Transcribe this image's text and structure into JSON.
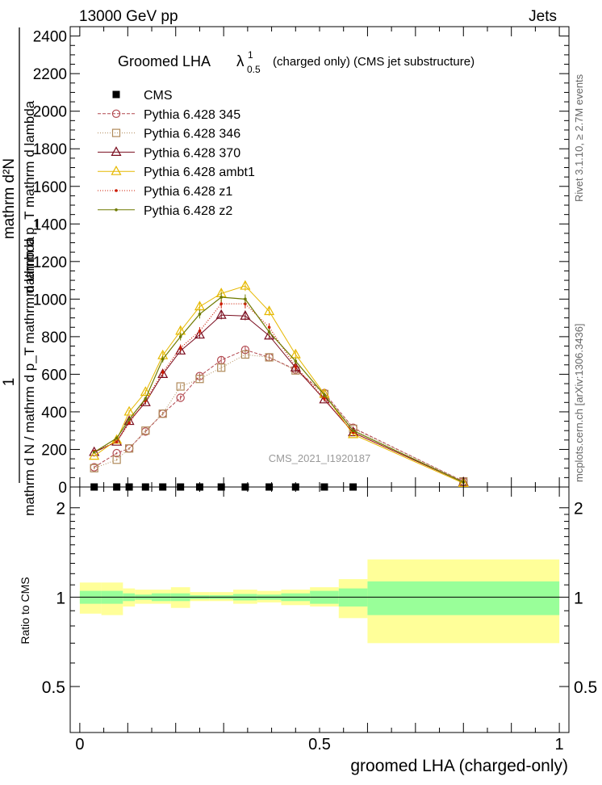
{
  "header": {
    "left": "13000 GeV pp",
    "right": "Jets"
  },
  "title": {
    "prefix": "Groomed LHA",
    "symbol": "λ",
    "superscript": "1",
    "subscript": "0.5",
    "suffix": "(charged only) (CMS jet substructure)"
  },
  "analysis_label": "CMS_2021_I1920187",
  "side_labels": {
    "rivet": "Rivet 3.1.10, ≥ 2.7M events",
    "mcplots": "mcplots.cern.ch [arXiv:1306.3436]"
  },
  "ylabel_top": {
    "prefactor": "1",
    "numerator": "mathrm d²N",
    "numerator_sub": "mathrm d p_T mathrm d lambda",
    "denominator": "mathrm d N / mathrm d p_T mathrm d lambda"
  },
  "ratio_ylabel": "Ratio to CMS",
  "xlabel": "groomed LHA (charged-only)",
  "legend": [
    "CMS",
    "Pythia 6.428 345",
    "Pythia 6.428 346",
    "Pythia 6.428 370",
    "Pythia 6.428 ambt1",
    "Pythia 6.428 z1",
    "Pythia 6.428 z2"
  ],
  "colors": {
    "data": "#000000",
    "p345": "#b2484f",
    "p346": "#b08a5a",
    "p370": "#7a0d1f",
    "ambt1": "#e6b800",
    "z1": "#cc1a00",
    "z2": "#6e7a00",
    "band_inner": "#99ff99",
    "band_outer": "#ffff99"
  },
  "chart_data": [
    {
      "type": "line",
      "panel": "main",
      "x": [
        0.03,
        0.077,
        0.103,
        0.137,
        0.173,
        0.21,
        0.25,
        0.295,
        0.345,
        0.395,
        0.45,
        0.51,
        0.57,
        0.8
      ],
      "xlim": [
        -0.02,
        1.02
      ],
      "ylim": [
        0,
        2450
      ],
      "yticks": [
        0,
        200,
        400,
        600,
        800,
        1000,
        1200,
        1400,
        1600,
        1800,
        2000,
        2200,
        2400
      ],
      "ytick_labels": [
        "0",
        "200",
        "400",
        "600",
        "800",
        "1000",
        "1200",
        "1400",
        "1600",
        "1800",
        "2000",
        "2200",
        "2400"
      ],
      "series": [
        {
          "name": "CMS",
          "values": [
            0,
            0,
            0,
            0,
            0,
            0,
            0,
            0,
            0,
            0,
            0,
            0,
            0,
            null
          ]
        },
        {
          "name": "Pythia 6.428 345",
          "values": [
            105,
            180,
            205,
            295,
            390,
            475,
            590,
            675,
            730,
            690,
            625,
            500,
            315,
            30
          ]
        },
        {
          "name": "Pythia 6.428 346",
          "values": [
            100,
            145,
            205,
            300,
            390,
            535,
            575,
            635,
            705,
            690,
            620,
            495,
            310,
            30
          ]
        },
        {
          "name": "Pythia 6.428 370",
          "values": [
            185,
            240,
            350,
            450,
            600,
            725,
            810,
            915,
            910,
            805,
            635,
            465,
            290,
            25
          ]
        },
        {
          "name": "Pythia 6.428 ambt1",
          "values": [
            165,
            250,
            400,
            505,
            700,
            830,
            960,
            1030,
            1070,
            935,
            705,
            495,
            280,
            20
          ]
        },
        {
          "name": "Pythia 6.428 z1",
          "values": [
            190,
            240,
            340,
            460,
            610,
            740,
            830,
            975,
            975,
            850,
            640,
            470,
            290,
            25
          ]
        },
        {
          "name": "Pythia 6.428 z2",
          "values": [
            185,
            260,
            360,
            470,
            680,
            800,
            920,
            1010,
            1000,
            825,
            670,
            490,
            300,
            25
          ]
        }
      ]
    },
    {
      "type": "area",
      "panel": "ratio",
      "xlim": [
        -0.02,
        1.02
      ],
      "ylim": [
        0.35,
        2.35
      ],
      "yticks": [
        0.5,
        1,
        2
      ],
      "ytick_labels": [
        "0.5",
        "1",
        "2"
      ],
      "xticks": [
        0,
        0.5,
        1
      ],
      "xtick_labels": [
        "0",
        "0.5",
        "1"
      ],
      "bins": [
        0,
        0.045,
        0.09,
        0.115,
        0.15,
        0.19,
        0.23,
        0.27,
        0.32,
        0.37,
        0.42,
        0.48,
        0.54,
        0.6,
        1.0
      ],
      "inner_band_lo": [
        0.95,
        0.95,
        0.97,
        0.98,
        0.97,
        0.97,
        0.985,
        0.985,
        0.975,
        0.98,
        0.97,
        0.95,
        0.93,
        0.87
      ],
      "inner_band_hi": [
        1.05,
        1.05,
        1.03,
        1.02,
        1.03,
        1.03,
        1.015,
        1.015,
        1.025,
        1.02,
        1.03,
        1.05,
        1.07,
        1.13
      ],
      "outer_band_lo": [
        0.88,
        0.87,
        0.93,
        0.95,
        0.95,
        0.92,
        0.97,
        0.97,
        0.95,
        0.96,
        0.94,
        0.93,
        0.85,
        0.7
      ],
      "outer_band_hi": [
        1.12,
        1.12,
        1.07,
        1.06,
        1.06,
        1.08,
        1.04,
        1.04,
        1.06,
        1.05,
        1.06,
        1.08,
        1.15,
        1.34
      ],
      "reference": 1
    }
  ]
}
